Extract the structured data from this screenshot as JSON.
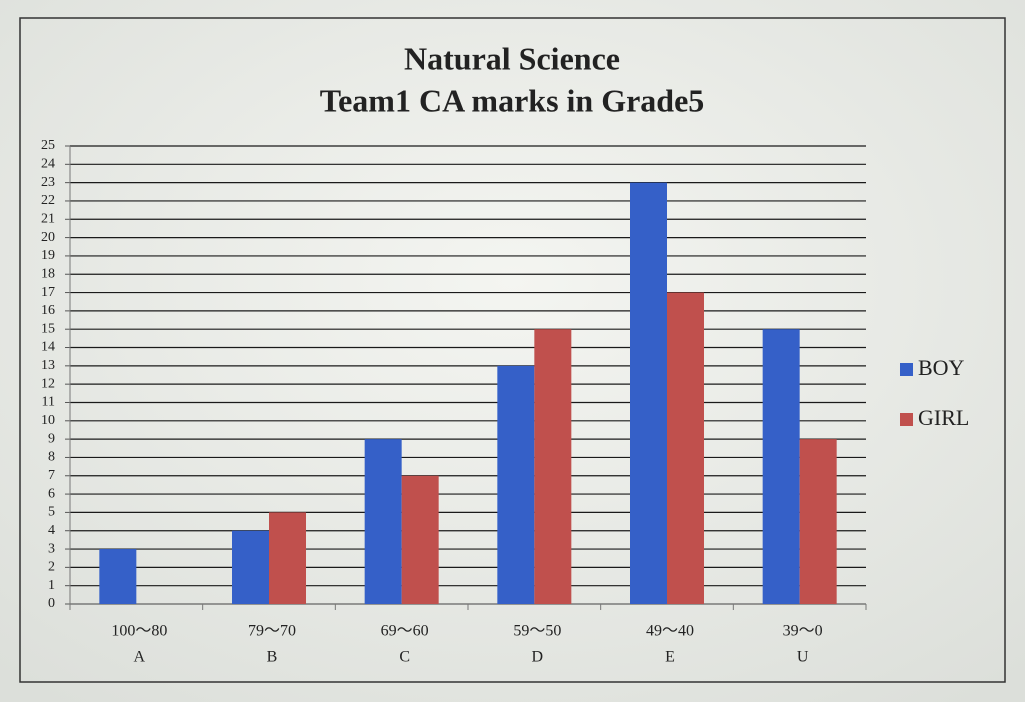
{
  "chart_data": {
    "type": "bar",
    "title": [
      "Natural Science",
      "Team1 CA marks in Grade5"
    ],
    "categories": [
      [
        "100～80",
        "A"
      ],
      [
        "79～70",
        "B"
      ],
      [
        "69～60",
        "C"
      ],
      [
        "59～50",
        "D"
      ],
      [
        "49～40",
        "E"
      ],
      [
        "39～0",
        "U"
      ]
    ],
    "series": [
      {
        "name": "BOY",
        "color": "#3560c8",
        "values": [
          3,
          4,
          9,
          13,
          23,
          15
        ]
      },
      {
        "name": "GIRL",
        "color": "#c0504d",
        "values": [
          0,
          5,
          7,
          15,
          17,
          9
        ]
      }
    ],
    "ylim": [
      0,
      25
    ],
    "yticks": [
      0,
      1,
      2,
      3,
      4,
      5,
      6,
      7,
      8,
      9,
      10,
      11,
      12,
      13,
      14,
      15,
      16,
      17,
      18,
      19,
      20,
      21,
      22,
      23,
      24,
      25
    ],
    "grid": true,
    "legend": "right"
  }
}
